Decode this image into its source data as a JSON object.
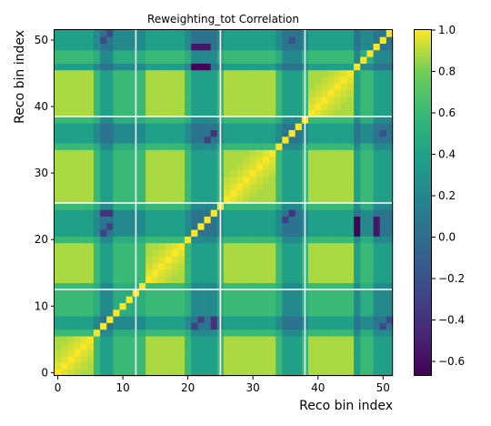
{
  "chart_data": {
    "type": "heatmap",
    "title": "Reweighting_tot Correlation",
    "xlabel": "Reco bin index",
    "ylabel": "Reco bin index",
    "xlim": [
      0,
      52
    ],
    "ylim": [
      0,
      52
    ],
    "n_bins": 52,
    "x_ticks": [
      "0",
      "10",
      "20",
      "30",
      "40",
      "50"
    ],
    "y_ticks": [
      "0",
      "10",
      "20",
      "30",
      "40",
      "50"
    ],
    "colorbar": {
      "colormap": "viridis",
      "vmin": -0.67,
      "vmax": 1.0,
      "ticks": [
        "1.0",
        "0.8",
        "0.6",
        "0.4",
        "0.2",
        "0.0",
        "−0.2",
        "−0.4",
        "−0.6"
      ]
    },
    "block_boundaries": [
      12.5,
      25.5,
      38.5
    ],
    "bin_groups": {
      "A_strongly_correlated": [
        0,
        1,
        2,
        3,
        4,
        5,
        14,
        15,
        16,
        17,
        18,
        19,
        26,
        27,
        28,
        29,
        30,
        31,
        32,
        33,
        39,
        40,
        41,
        42,
        43,
        44,
        45
      ],
      "B_medium": [
        6,
        9,
        10,
        11,
        12,
        13,
        20,
        25,
        34,
        38,
        47,
        48
      ],
      "C_anticorrelated": [
        7,
        8,
        21,
        22,
        23,
        24,
        35,
        36,
        37,
        46,
        49,
        50,
        51
      ]
    },
    "group_correlations": {
      "A-A": 0.88,
      "A-B": 0.6,
      "A-C": 0.38,
      "B-B": 0.5,
      "B-C": 0.22,
      "C-C": 0.05
    },
    "anticorrelated_pairs": [
      [
        21,
        46,
        -0.65
      ],
      [
        22,
        46,
        -0.65
      ],
      [
        23,
        46,
        -0.65
      ],
      [
        21,
        49,
        -0.55
      ],
      [
        22,
        49,
        -0.55
      ],
      [
        23,
        49,
        -0.55
      ],
      [
        24,
        7,
        -0.4
      ],
      [
        24,
        8,
        -0.4
      ],
      [
        24,
        36,
        -0.4
      ],
      [
        21,
        7,
        -0.3
      ],
      [
        22,
        8,
        -0.3
      ],
      [
        23,
        35,
        -0.3
      ],
      [
        50,
        7,
        -0.25
      ],
      [
        51,
        8,
        -0.25
      ],
      [
        50,
        36,
        -0.2
      ]
    ]
  }
}
